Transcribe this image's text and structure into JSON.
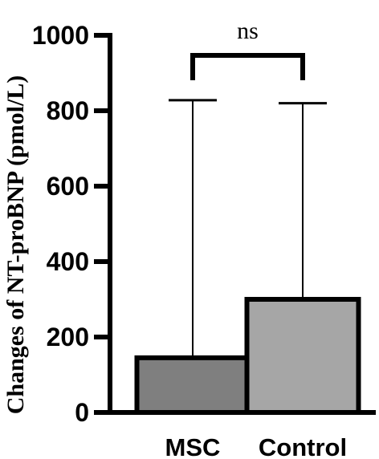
{
  "chart_data": {
    "type": "bar",
    "title": "",
    "xlabel": "",
    "ylabel": "Changes of NT-proBNP (pmol/L)",
    "categories": [
      "MSC",
      "Control"
    ],
    "values": [
      145,
      300
    ],
    "error_upper": [
      828,
      820
    ],
    "ylim": [
      0,
      1000
    ],
    "yticks": [
      0,
      200,
      400,
      600,
      800,
      1000
    ],
    "grid": false,
    "legend": "none",
    "bar_colors": [
      "#7f7f7f",
      "#a6a6a6"
    ],
    "edge_color": "#000000",
    "significance": {
      "between": [
        "MSC",
        "Control"
      ],
      "label": "ns"
    }
  }
}
